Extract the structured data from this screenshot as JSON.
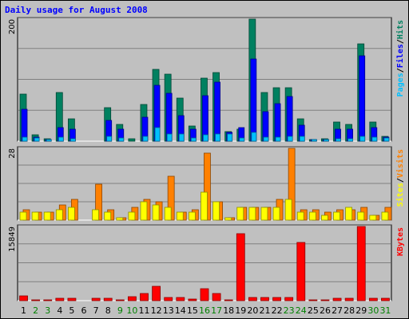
{
  "chart_data": {
    "type": "bar",
    "title": "Daily usage for August 2008",
    "categories": [
      "1",
      "2",
      "3",
      "4",
      "5",
      "6",
      "7",
      "8",
      "9",
      "10",
      "11",
      "12",
      "13",
      "14",
      "15",
      "16",
      "17",
      "18",
      "19",
      "20",
      "21",
      "22",
      "23",
      "24",
      "25",
      "26",
      "27",
      "28",
      "29",
      "30",
      "31"
    ],
    "weekend_days": [
      "2",
      "3",
      "9",
      "10",
      "16",
      "17",
      "23",
      "24",
      "30",
      "31"
    ],
    "panels": [
      {
        "id": "hits",
        "max_label": "200",
        "ylim": [
          0,
          200
        ],
        "legend": [
          "Pages",
          "/",
          "Files",
          "/",
          "Hits"
        ],
        "series": [
          {
            "name": "Hits",
            "color": "#008060",
            "values": [
              77,
              10,
              4,
              80,
              36,
              0,
              0,
              55,
              28,
              4,
              60,
              118,
              110,
              70,
              25,
              103,
              112,
              16,
              20,
              200,
              80,
              88,
              88,
              36,
              3,
              4,
              32,
              28,
              160,
              32,
              8
            ]
          },
          {
            "name": "Files",
            "color": "#0000ff",
            "values": [
              52,
              6,
              2,
              22,
              20,
              0,
              0,
              34,
              20,
              0,
              39,
              92,
              78,
              42,
              20,
              75,
              97,
              14,
              22,
              135,
              48,
              62,
              73,
              26,
              2,
              2,
              20,
              20,
              140,
              22,
              6
            ]
          },
          {
            "name": "Pages",
            "color": "#00c0ff",
            "values": [
              6,
              5,
              2,
              6,
              4,
              0,
              0,
              8,
              5,
              0,
              8,
              22,
              12,
              12,
              5,
              10,
              12,
              12,
              5,
              15,
              7,
              7,
              8,
              8,
              2,
              2,
              4,
              4,
              8,
              6,
              5
            ]
          }
        ]
      },
      {
        "id": "visits",
        "max_label": "28",
        "ylim": [
          0,
          28
        ],
        "legend": [
          "Sites",
          "/",
          "Visits"
        ],
        "series": [
          {
            "name": "Visits",
            "color": "#ff8000",
            "values": [
              4,
              3,
              3,
              6,
              8,
              0,
              14,
              4,
              1,
              5,
              8,
              7,
              17,
              3,
              4,
              26,
              7,
              1,
              5,
              5,
              5,
              8,
              28,
              4,
              4,
              3,
              4,
              4,
              5,
              2,
              5
            ]
          },
          {
            "name": "Sites",
            "color": "#ffff00",
            "values": [
              3,
              3,
              3,
              4,
              5,
              0,
              4,
              3,
              1,
              3,
              7,
              6,
              5,
              3,
              3,
              11,
              7,
              1,
              5,
              5,
              5,
              5,
              8,
              3,
              3,
              2,
              3,
              5,
              3,
              2,
              3
            ]
          }
        ]
      },
      {
        "id": "kbytes",
        "max_label": "15849",
        "ylim": [
          0,
          15849
        ],
        "legend": [
          "KBytes"
        ],
        "series": [
          {
            "name": "KBytes",
            "color": "#ff0000",
            "values": [
              1000,
              200,
              200,
              500,
              500,
              0,
              500,
              500,
              200,
              800,
              1500,
              3000,
              700,
              600,
              300,
              2600,
              1500,
              150,
              14300,
              600,
              700,
              600,
              650,
              12500,
              250,
              250,
              500,
              500,
              15849,
              500,
              500
            ]
          }
        ]
      }
    ],
    "grid": true,
    "colors": {
      "background": "#c0c0c0",
      "plot_bg": "#c0c0c0",
      "grid": "#808080",
      "title": "#0000ff",
      "weekday_label": "#000000",
      "weekend_label": "#008000",
      "axis_label": "#000000",
      "legend_sep": "#000000"
    }
  }
}
